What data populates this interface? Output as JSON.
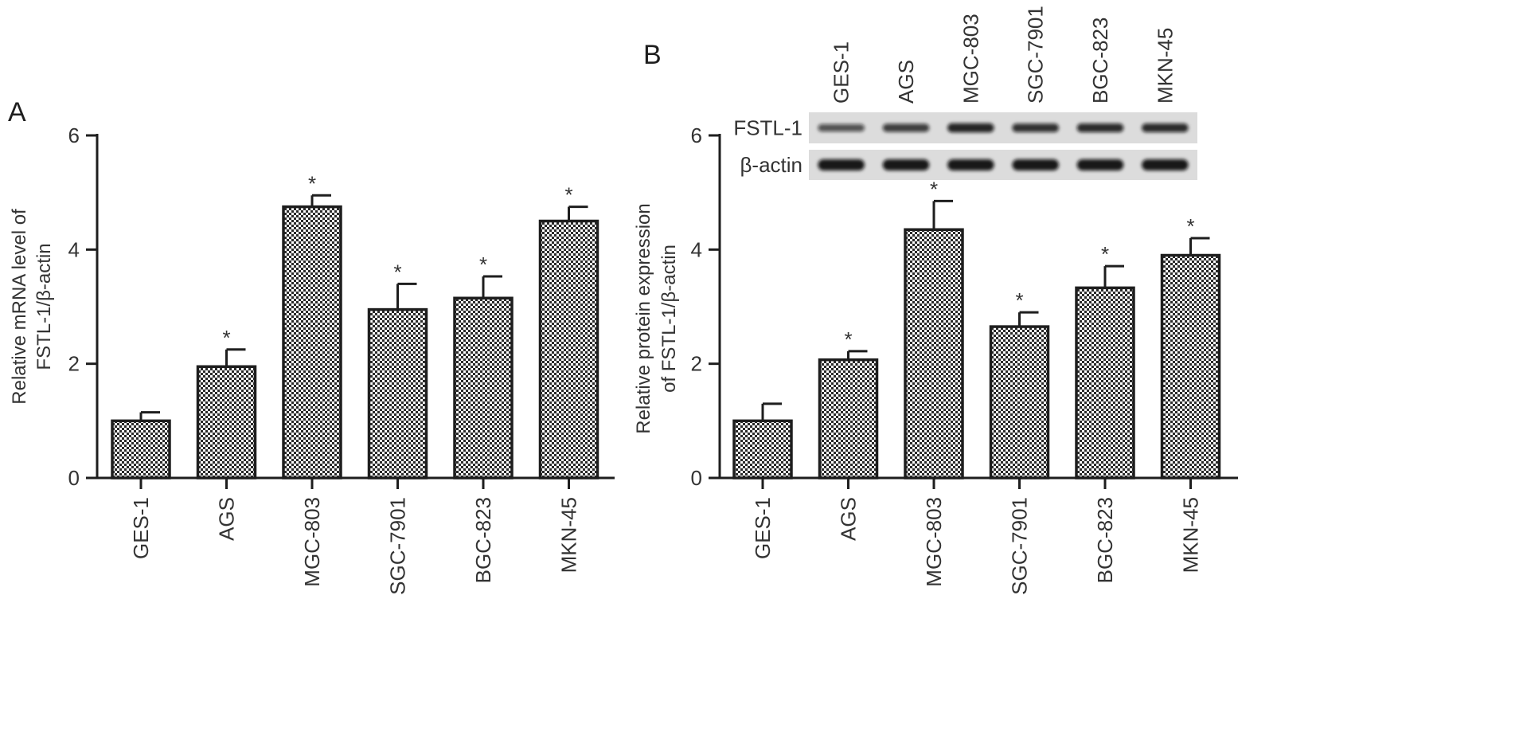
{
  "panels": [
    {
      "label": "A",
      "chart_data": {
        "type": "bar",
        "title": "",
        "xlabel": "",
        "ylabel": [
          "Relative mRNA level of",
          "FSTL-1/β-actin"
        ],
        "categories": [
          "GES-1",
          "AGS",
          "MGC-803",
          "SGC-7901",
          "BGC-823",
          "MKN-45"
        ],
        "values": [
          1.0,
          1.95,
          4.75,
          2.95,
          3.15,
          4.5
        ],
        "errors": [
          0.15,
          0.3,
          0.2,
          0.45,
          0.38,
          0.25
        ],
        "significance": [
          "",
          "*",
          "*",
          "*",
          "*",
          "*"
        ],
        "ylim": [
          0,
          6
        ],
        "yticks": [
          0,
          2,
          4,
          6
        ],
        "grid": false
      }
    },
    {
      "label": "B",
      "chart_data": {
        "type": "bar",
        "title": "",
        "xlabel": "",
        "ylabel": [
          "Relative protein expression",
          "of FSTL-1/β-actin"
        ],
        "categories": [
          "GES-1",
          "AGS",
          "MGC-803",
          "SGC-7901",
          "BGC-823",
          "MKN-45"
        ],
        "values": [
          1.0,
          2.07,
          4.35,
          2.65,
          3.33,
          3.9
        ],
        "errors": [
          0.3,
          0.15,
          0.5,
          0.25,
          0.38,
          0.3
        ],
        "significance": [
          "",
          "*",
          "*",
          "*",
          "*",
          "*"
        ],
        "ylim": [
          0,
          6
        ],
        "yticks": [
          0,
          2,
          4,
          6
        ],
        "grid": false
      },
      "blot": {
        "lanes": [
          "GES-1",
          "AGS",
          "MGC-803",
          "SGC-7901",
          "BGC-823",
          "MKN-45"
        ],
        "rows": [
          {
            "label": "FSTL-1",
            "intensities": [
              0.55,
              0.7,
              0.9,
              0.8,
              0.85,
              0.85
            ]
          },
          {
            "label": "β-actin",
            "intensities": [
              1,
              1,
              1,
              1,
              1,
              1
            ]
          }
        ]
      }
    }
  ],
  "colors": {
    "axis": "#1e1e1e",
    "bar_fill": "#ffffff",
    "bar_pattern": "#2a2a2a",
    "blot_bg": "#dcdcdc",
    "band": "#101010"
  }
}
